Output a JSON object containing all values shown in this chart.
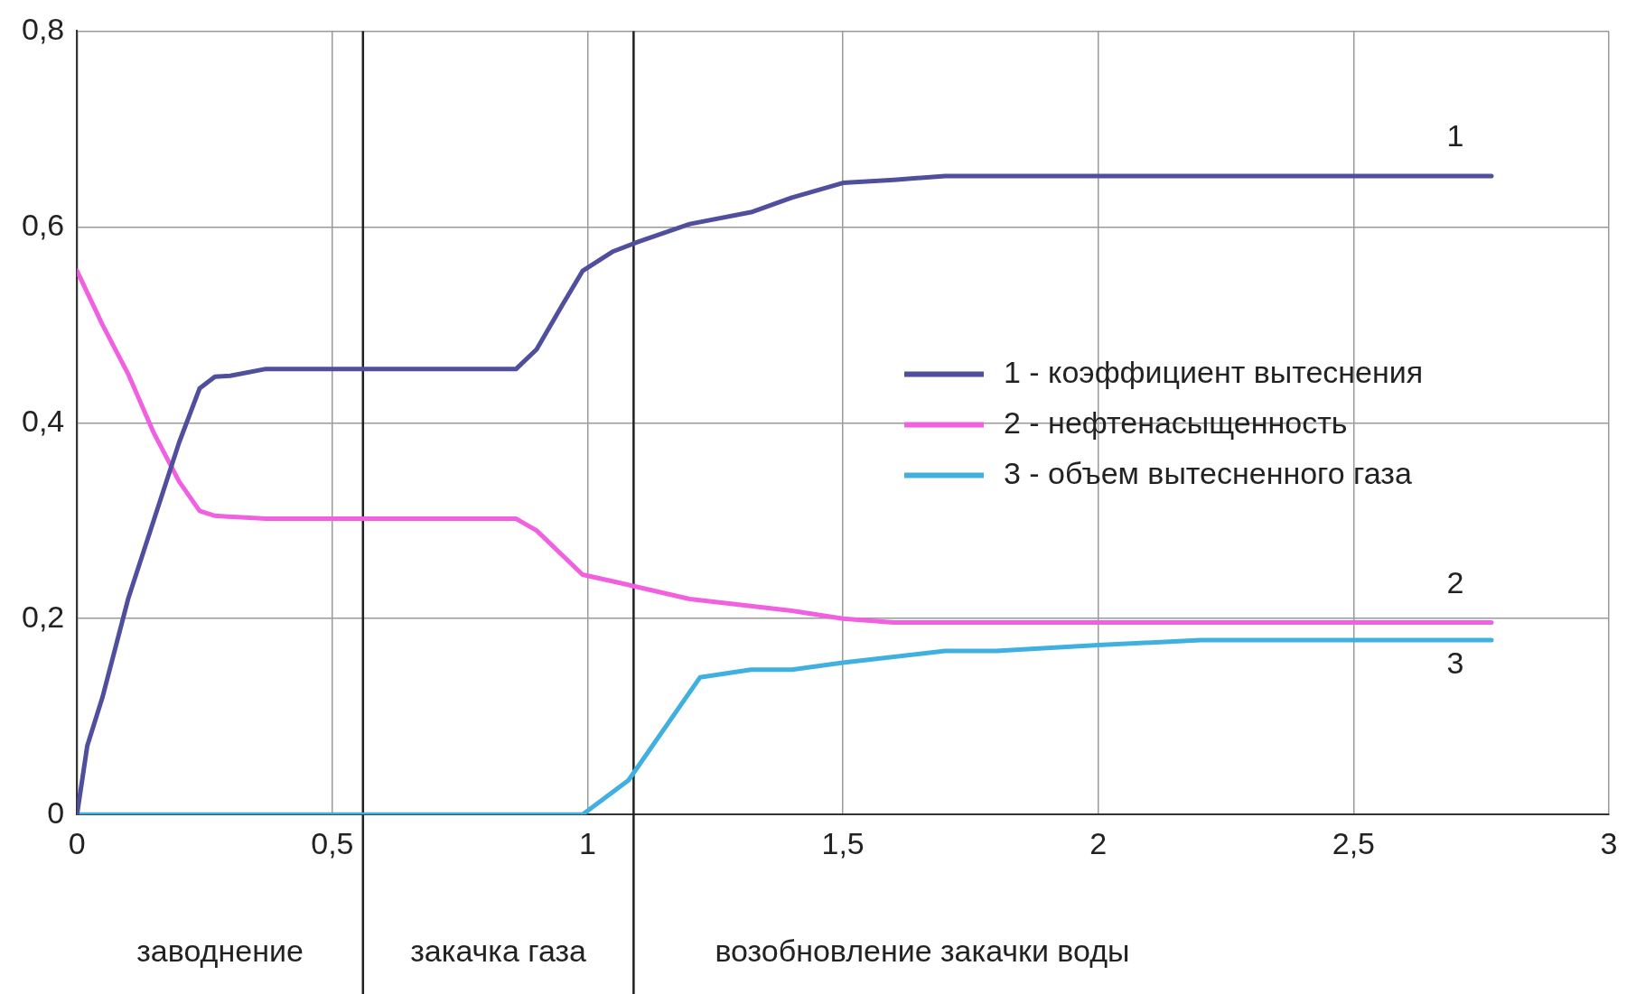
{
  "chart_data": {
    "type": "line",
    "xlim": [
      0,
      3
    ],
    "ylim": [
      0,
      0.8
    ],
    "xticks": [
      0,
      {
        "value": 0.5,
        "label": "0,5"
      },
      1,
      {
        "value": 1.5,
        "label": "1,5"
      },
      2,
      {
        "value": 2.5,
        "label": "2,5"
      },
      3
    ],
    "yticks": [
      0,
      {
        "value": 0.2,
        "label": "0,2"
      },
      {
        "value": 0.4,
        "label": "0,4"
      },
      {
        "value": 0.6,
        "label": "0,6"
      },
      {
        "value": 0.8,
        "label": "0,8"
      }
    ],
    "grid": true,
    "legend": "right",
    "marker": "none",
    "line_style": "solid",
    "series": [
      {
        "name": "1 - коэффициент вытеснения",
        "color": "#4f4f9e",
        "x": [
          0,
          0.02,
          0.05,
          0.1,
          0.15,
          0.2,
          0.24,
          0.27,
          0.3,
          0.37,
          0.5,
          0.86,
          0.9,
          0.95,
          0.99,
          1.05,
          1.1,
          1.2,
          1.32,
          1.4,
          1.5,
          1.6,
          1.7,
          2.0,
          2.77
        ],
        "values": [
          0,
          0.07,
          0.12,
          0.22,
          0.3,
          0.38,
          0.435,
          0.447,
          0.448,
          0.455,
          0.455,
          0.455,
          0.475,
          0.52,
          0.555,
          0.575,
          0.585,
          0.603,
          0.615,
          0.63,
          0.645,
          0.648,
          0.652,
          0.652,
          0.652
        ]
      },
      {
        "name": "2 - нефтенасыщенность",
        "color": "#f060e0",
        "x": [
          0,
          0.05,
          0.1,
          0.15,
          0.2,
          0.24,
          0.27,
          0.37,
          0.86,
          0.9,
          0.99,
          1.05,
          1.1,
          1.2,
          1.4,
          1.5,
          1.6,
          2.0,
          2.77
        ],
        "values": [
          0.555,
          0.5,
          0.45,
          0.39,
          0.34,
          0.31,
          0.305,
          0.302,
          0.302,
          0.29,
          0.245,
          0.238,
          0.232,
          0.22,
          0.208,
          0.2,
          0.196,
          0.196,
          0.196
        ]
      },
      {
        "name": "3 - объем вытесненного газа",
        "color": "#40b0e0",
        "x": [
          0,
          0.99,
          1.08,
          1.22,
          1.32,
          1.4,
          1.5,
          1.7,
          1.8,
          2.0,
          2.2,
          2.77
        ],
        "values": [
          0,
          0,
          0.035,
          0.14,
          0.148,
          0.148,
          0.155,
          0.167,
          0.167,
          0.173,
          0.178,
          0.178
        ]
      }
    ],
    "ref_lines": [
      {
        "axis": "x",
        "value": 0.56,
        "color": "#202020"
      },
      {
        "axis": "x",
        "value": 1.09,
        "color": "#202020"
      }
    ],
    "annotations": [
      "1",
      "2",
      "3",
      "заводнение",
      "закачка газа",
      "возобновление закачки воды"
    ]
  }
}
